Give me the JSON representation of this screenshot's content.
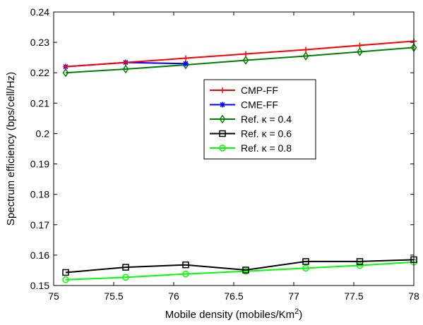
{
  "chart_data": {
    "type": "line",
    "title": "",
    "xlabel": "Mobile density (mobiles/Km",
    "xlabel_sup": "2",
    "xlabel_close": ")",
    "ylabel": "Spectrum efficiency (bps/cell/Hz)",
    "xlim": [
      75,
      78
    ],
    "ylim": [
      0.15,
      0.24
    ],
    "xticks": [
      75,
      75.5,
      76,
      76.5,
      77,
      77.5,
      78
    ],
    "xtick_labels": [
      "75",
      "75.5",
      "76",
      "76.5",
      "77",
      "77.5",
      "78"
    ],
    "yticks": [
      0.15,
      0.16,
      0.17,
      0.18,
      0.19,
      0.2,
      0.21,
      0.22,
      0.23,
      0.24
    ],
    "ytick_labels": [
      "0.15",
      "0.16",
      "0.17",
      "0.18",
      "0.19",
      "0.2",
      "0.21",
      "0.22",
      "0.23",
      "0.24"
    ],
    "grid": false,
    "legend_position": "center-right",
    "series": [
      {
        "name": "CMP-FF",
        "color": "#ff0000",
        "marker": "plus",
        "x": [
          75.1,
          75.6,
          76.1,
          76.6,
          77.1,
          77.55,
          78.0
        ],
        "y": [
          0.222,
          0.2234,
          0.2248,
          0.2262,
          0.2276,
          0.229,
          0.2304
        ]
      },
      {
        "name": "CME-FF",
        "color": "#0000ff",
        "marker": "star",
        "x": [
          75.1,
          75.6,
          76.1
        ],
        "y": [
          0.222,
          0.2234,
          0.223
        ]
      },
      {
        "name": "Ref. κ = 0.4",
        "color": "#008000",
        "marker": "diamond",
        "x": [
          75.1,
          75.6,
          76.1,
          76.6,
          77.1,
          77.55,
          78.0
        ],
        "y": [
          0.22,
          0.2212,
          0.2226,
          0.2241,
          0.2255,
          0.2269,
          0.2283
        ]
      },
      {
        "name": "Ref. κ = 0.6",
        "color": "#000000",
        "marker": "square",
        "x": [
          75.1,
          75.6,
          76.1,
          76.6,
          77.1,
          77.55,
          78.0
        ],
        "y": [
          0.1543,
          0.156,
          0.1568,
          0.1551,
          0.1579,
          0.1579,
          0.1585
        ]
      },
      {
        "name": "Ref. κ = 0.8",
        "color": "#00ff00",
        "marker": "circle",
        "x": [
          75.1,
          75.6,
          76.1,
          76.6,
          77.1,
          77.55,
          78.0
        ],
        "y": [
          0.1519,
          0.1527,
          0.1538,
          0.1547,
          0.1557,
          0.1566,
          0.1577
        ]
      }
    ]
  }
}
